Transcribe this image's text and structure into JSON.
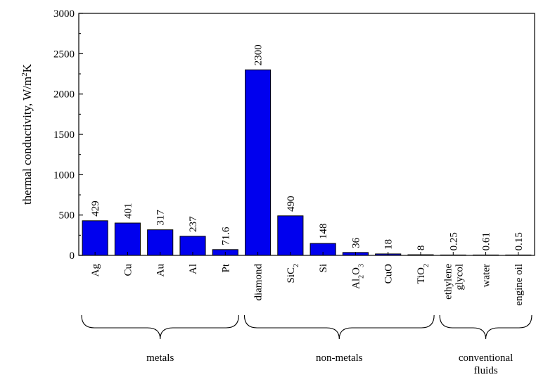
{
  "chart_data": {
    "type": "bar",
    "title": "",
    "xlabel": "",
    "ylabel": "thermal conductivity, W/m2K",
    "ylabel_parts": {
      "text": "thermal conductivity, W/m",
      "sup": "2",
      "tail": "K"
    },
    "ylim": [
      0,
      3000
    ],
    "yticks": [
      "0",
      "500",
      "1000",
      "1500",
      "2000",
      "2500",
      "3000"
    ],
    "categories": [
      {
        "label": "Ag",
        "sub": "",
        "after": "",
        "value": 429,
        "value_label": "429"
      },
      {
        "label": "Cu",
        "sub": "",
        "after": "",
        "value": 401,
        "value_label": "401"
      },
      {
        "label": "Au",
        "sub": "",
        "after": "",
        "value": 317,
        "value_label": "317"
      },
      {
        "label": "Al",
        "sub": "",
        "after": "",
        "value": 237,
        "value_label": "237"
      },
      {
        "label": "Pt",
        "sub": "",
        "after": "",
        "value": 71.6,
        "value_label": "71.6"
      },
      {
        "label": "diamond",
        "sub": "",
        "after": "",
        "value": 2300,
        "value_label": "2300"
      },
      {
        "label": "SiC",
        "sub": "2",
        "after": "",
        "value": 490,
        "value_label": "490"
      },
      {
        "label": "Si",
        "sub": "",
        "after": "",
        "value": 148,
        "value_label": "148"
      },
      {
        "label": "Al",
        "sub": "2",
        "after": "O",
        "sub2": "3",
        "value": 36,
        "value_label": "36"
      },
      {
        "label": "CuO",
        "sub": "",
        "after": "",
        "value": 18,
        "value_label": "18"
      },
      {
        "label": "TiO",
        "sub": "2",
        "after": "",
        "value": 8,
        "value_label": "8"
      },
      {
        "label": "ethylene glycol",
        "lines": [
          "ethylene",
          "glycol"
        ],
        "sub": "",
        "after": "",
        "value": 0.25,
        "value_label": "0.25"
      },
      {
        "label": "water",
        "sub": "",
        "after": "",
        "value": 0.61,
        "value_label": "0.61"
      },
      {
        "label": "engine oil",
        "sub": "",
        "after": "",
        "value": 0.15,
        "value_label": "0.15"
      }
    ],
    "groups": [
      {
        "label": "metals",
        "lines": [
          "metals"
        ],
        "from": 0,
        "to": 4
      },
      {
        "label": "non-metals",
        "lines": [
          "non-metals"
        ],
        "from": 5,
        "to": 10
      },
      {
        "label": "conventional fluids",
        "lines": [
          "conventional",
          "fluids"
        ],
        "from": 11,
        "to": 13
      }
    ],
    "colors": {
      "bar_fill": "#0000ee",
      "bar_stroke": "#000000"
    },
    "grid": false,
    "legend": "none"
  }
}
